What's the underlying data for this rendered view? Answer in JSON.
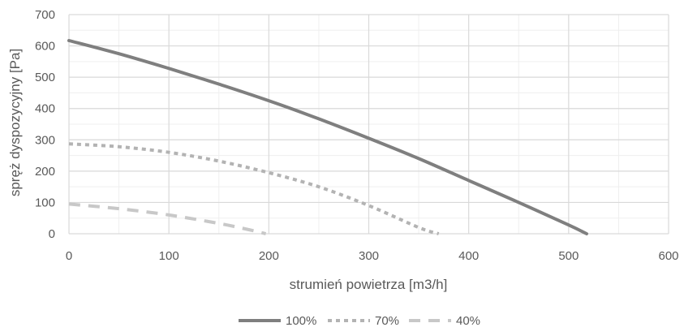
{
  "chart_data": {
    "type": "line",
    "title": "",
    "xlabel": "strumień powietrza [m3/h]",
    "ylabel": "spręż dyspozycyjny [Pa]",
    "xlim": [
      0,
      600
    ],
    "ylim": [
      0,
      700
    ],
    "x_ticks": [
      "0",
      "100",
      "200",
      "300",
      "400",
      "500",
      "600"
    ],
    "y_ticks": [
      "0",
      "100",
      "200",
      "300",
      "400",
      "500",
      "600",
      "700"
    ],
    "grid": true,
    "legend": "bottom",
    "series": [
      {
        "name": "100%",
        "color": "#7f7f7f",
        "style": "solid",
        "points": [
          [
            0,
            617
          ],
          [
            50,
            575
          ],
          [
            100,
            528
          ],
          [
            150,
            478
          ],
          [
            200,
            425
          ],
          [
            250,
            367
          ],
          [
            300,
            305
          ],
          [
            350,
            240
          ],
          [
            400,
            170
          ],
          [
            450,
            100
          ],
          [
            500,
            28
          ],
          [
            518,
            0
          ]
        ]
      },
      {
        "name": "70%",
        "color": "#b3b3b3",
        "style": "dotted",
        "points": [
          [
            0,
            287
          ],
          [
            50,
            278
          ],
          [
            100,
            260
          ],
          [
            150,
            232
          ],
          [
            200,
            195
          ],
          [
            250,
            150
          ],
          [
            300,
            90
          ],
          [
            350,
            20
          ],
          [
            370,
            0
          ]
        ]
      },
      {
        "name": "40%",
        "color": "#c8c8c8",
        "style": "dashed",
        "points": [
          [
            0,
            95
          ],
          [
            50,
            80
          ],
          [
            100,
            60
          ],
          [
            150,
            33
          ],
          [
            180,
            13
          ],
          [
            197,
            0
          ]
        ]
      }
    ]
  }
}
